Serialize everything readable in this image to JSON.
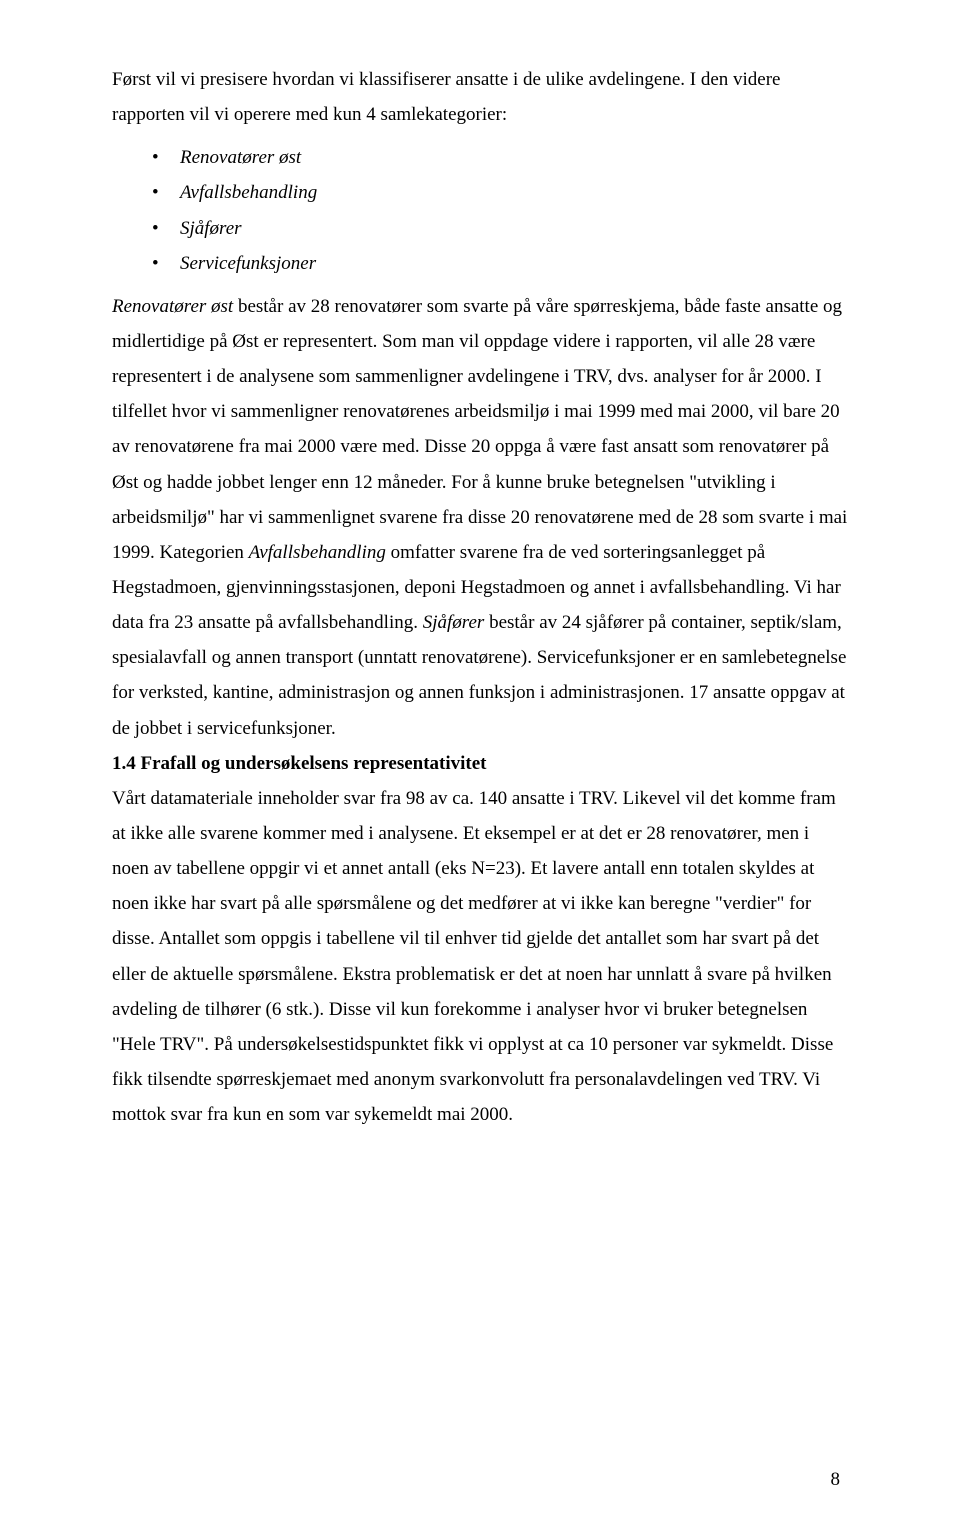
{
  "intro": "Først vil vi presisere hvordan vi klassifiserer ansatte i de ulike avdelingene. I den videre rapporten vil vi operere med kun 4 samlekategorier:",
  "bullets": [
    "Renovatører øst",
    "Avfallsbehandling",
    "Sjåfører",
    "Servicefunksjoner"
  ],
  "body": {
    "run1_i": "Renovatører øst",
    "run1_r": " består av 28 renovatører som svarte på våre spørreskjema, både faste ansatte og midlertidige på Øst er representert. Som man vil oppdage videre i rapporten, vil alle 28 være representert i de analysene som sammenligner avdelingene i TRV, dvs. analyser for år 2000. I tilfellet hvor vi sammenligner renovatørenes arbeidsmiljø i mai 1999 med mai 2000, vil bare 20 av renovatørene fra mai 2000 være med. Disse 20 oppga å være fast ansatt som renovatører på Øst og hadde jobbet lenger enn 12 måneder. For å kunne bruke betegnelsen \"utvikling i arbeidsmiljø\" har vi sammenlignet svarene fra disse 20 renovatørene med de 28 som svarte i mai 1999. Kategorien ",
    "run2_i": "Avfallsbehandling",
    "run2_r": " omfatter svarene fra de ved sorteringsanlegget på Hegstadmoen, gjenvinningsstasjonen, deponi Hegstadmoen og annet i avfallsbehandling. Vi har data fra 23 ansatte på avfallsbehandling. ",
    "run3_i": "Sjåfører",
    "run3_r": " består av 24 sjåfører på container, septik/slam, spesialavfall og annen transport (unntatt renovatørene). Servicefunksjoner er en samlebetegnelse for verksted, kantine, administrasjon og annen funksjon i administrasjonen. 17 ansatte oppgav at de jobbet i servicefunksjoner."
  },
  "heading": "1.4 Frafall og undersøkelsens representativitet",
  "para2": "Vårt datamateriale inneholder svar fra 98 av ca. 140 ansatte i TRV. Likevel vil det komme fram at ikke alle svarene kommer med i analysene. Et eksempel er at det er 28 renovatører, men i noen av tabellene oppgir vi et annet antall (eks N=23). Et lavere antall enn totalen skyldes at noen ikke har svart på alle spørsmålene og det medfører at vi ikke kan beregne \"verdier\" for disse. Antallet som oppgis i tabellene vil til enhver tid gjelde det antallet som har svart på det eller de aktuelle spørsmålene. Ekstra problematisk er det at noen har unnlatt å svare på hvilken avdeling de tilhører (6 stk.). Disse vil kun forekomme i analyser hvor vi bruker betegnelsen \"Hele TRV\".  På undersøkelsestidspunktet fikk vi opplyst at ca 10 personer var sykmeldt. Disse fikk tilsendte spørreskjemaet med anonym svarkonvolutt fra personalavdelingen ved TRV. Vi mottok svar fra kun en som var sykemeldt mai 2000.",
  "page_number": "8"
}
